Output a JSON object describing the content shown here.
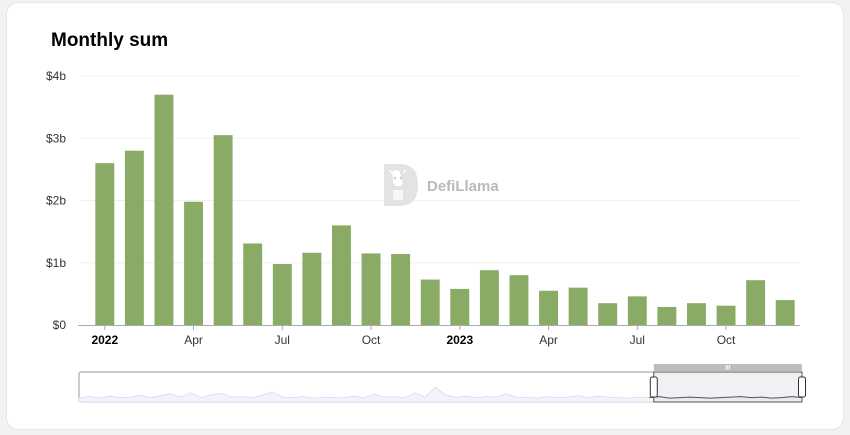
{
  "card": {
    "title": "Monthly sum"
  },
  "watermark": {
    "text": "DefiLlama"
  },
  "colors": {
    "bar": "#8aab66",
    "grid": "#f0f0f0",
    "axis": "#999999",
    "slider_fill": "#f3f4fb",
    "slider_border": "#9a9a9a"
  },
  "chart_data": {
    "type": "bar",
    "title": "Monthly sum",
    "xlabel": "",
    "ylabel": "",
    "ylim": [
      0,
      4000000000
    ],
    "y_ticks": [
      {
        "value": 0,
        "label": "$0"
      },
      {
        "value": 1000000000,
        "label": "$1b"
      },
      {
        "value": 2000000000,
        "label": "$2b"
      },
      {
        "value": 3000000000,
        "label": "$3b"
      },
      {
        "value": 4000000000,
        "label": "$4b"
      }
    ],
    "categories": [
      "2022-01",
      "2022-02",
      "2022-03",
      "2022-04",
      "2022-05",
      "2022-06",
      "2022-07",
      "2022-08",
      "2022-09",
      "2022-10",
      "2022-11",
      "2022-12",
      "2023-01",
      "2023-02",
      "2023-03",
      "2023-04",
      "2023-05",
      "2023-06",
      "2023-07",
      "2023-08",
      "2023-09",
      "2023-10",
      "2023-11",
      "2023-12"
    ],
    "values": [
      2600000000,
      2800000000,
      3700000000,
      1980000000,
      3050000000,
      1310000000,
      980000000,
      1160000000,
      1600000000,
      1150000000,
      1140000000,
      730000000,
      580000000,
      880000000,
      800000000,
      550000000,
      600000000,
      350000000,
      460000000,
      290000000,
      350000000,
      310000000,
      720000000,
      400000000
    ],
    "x_ticks": [
      {
        "index": 0,
        "label": "2022",
        "bold": true
      },
      {
        "index": 3,
        "label": "Apr",
        "bold": false
      },
      {
        "index": 6,
        "label": "Jul",
        "bold": false
      },
      {
        "index": 9,
        "label": "Oct",
        "bold": false
      },
      {
        "index": 12,
        "label": "2023",
        "bold": true
      },
      {
        "index": 15,
        "label": "Apr",
        "bold": false
      },
      {
        "index": 18,
        "label": "Jul",
        "bold": false
      },
      {
        "index": 21,
        "label": "Oct",
        "bold": false
      }
    ],
    "grid": true,
    "legend": "none"
  },
  "zoom_slider": {
    "range_start_fraction": 0.795,
    "range_end_fraction": 1.0,
    "handle_grip": "III",
    "overview_series": [
      0.1,
      0.14,
      0.08,
      0.16,
      0.1,
      0.12,
      0.2,
      0.09,
      0.18,
      0.26,
      0.12,
      0.3,
      0.1,
      0.22,
      0.28,
      0.12,
      0.14,
      0.1,
      0.2,
      0.34,
      0.12,
      0.1,
      0.14,
      0.08,
      0.12,
      0.1,
      0.09,
      0.16,
      0.1,
      0.24,
      0.12,
      0.14,
      0.1,
      0.3,
      0.12,
      0.52,
      0.2,
      0.12,
      0.16,
      0.1,
      0.14,
      0.12,
      0.26,
      0.1,
      0.12,
      0.08,
      0.14,
      0.1,
      0.12,
      0.18,
      0.1,
      0.16,
      0.12,
      0.1,
      0.08,
      0.12,
      0.1,
      0.14,
      0.08,
      0.1,
      0.12,
      0.1,
      0.08,
      0.1,
      0.12,
      0.14,
      0.1,
      0.12,
      0.08,
      0.1,
      0.14,
      0.1
    ]
  }
}
